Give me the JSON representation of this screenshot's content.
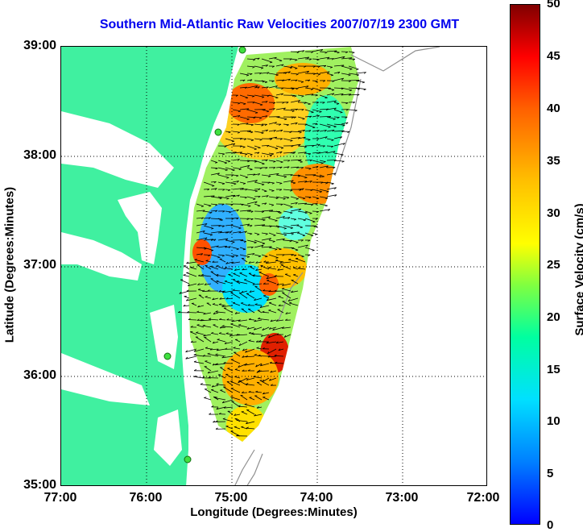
{
  "title": "Southern Mid-Atlantic Raw Velocities 2007/07/19 2300 GMT",
  "x_axis": {
    "label": "Longitude (Degrees:Minutes)",
    "ticks": [
      "77:00",
      "76:00",
      "75:00",
      "74:00",
      "73:00",
      "72:00"
    ]
  },
  "y_axis": {
    "label": "Latitude (Degrees:Minutes)",
    "ticks": [
      "39:00",
      "38:00",
      "37:00",
      "36:00",
      "35:00"
    ]
  },
  "colorbar": {
    "label": "Surface Velocity (cm/s)",
    "ticks": [
      "50",
      "45",
      "40",
      "35",
      "30",
      "25",
      "20",
      "15",
      "10",
      "5",
      "0"
    ],
    "range": [
      0,
      50
    ]
  },
  "colors": {
    "land": "#40f0a0",
    "title": "#0000ee",
    "station_marker": "#40e040",
    "bathymetry": "#909090"
  },
  "map": {
    "region": "Southern Mid-Atlantic Bight",
    "lon_range": [
      -77,
      -72
    ],
    "lat_range": [
      35,
      39
    ],
    "grid": true,
    "features": [
      "velocity-field",
      "velocity-arrows",
      "coastline",
      "bathymetry-contours",
      "hf-radar-stations"
    ]
  }
}
